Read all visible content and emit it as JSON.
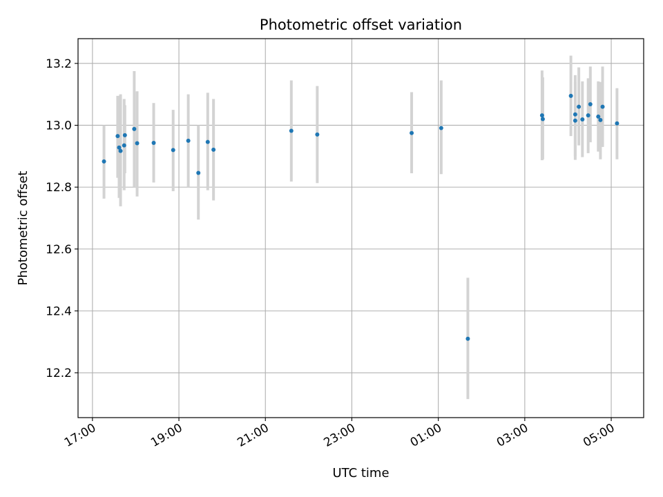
{
  "chart_data": {
    "type": "scatter",
    "title": "Photometric offset variation",
    "xlabel": "UTC time",
    "ylabel": "Photometric offset",
    "x_axis_type": "time",
    "xlim": [
      "16:40",
      "05:45"
    ],
    "ylim": [
      12.055,
      13.28
    ],
    "x_ticks": [
      "17:00",
      "19:00",
      "21:00",
      "23:00",
      "01:00",
      "03:00",
      "05:00"
    ],
    "y_ticks": [
      12.2,
      12.4,
      12.6,
      12.8,
      13.0,
      13.2
    ],
    "y_tick_labels": [
      "12.2",
      "12.4",
      "12.6",
      "12.8",
      "13.0",
      "13.2"
    ],
    "x_tick_rotation": "30 degrees",
    "grid": true,
    "marker_color": "#1f77b4",
    "errorbar_color": "#d3d3d3",
    "points": [
      {
        "t": "17:16",
        "y": 12.883,
        "ylo": 12.763,
        "yhi": 13.0
      },
      {
        "t": "17:35",
        "y": 12.965,
        "ylo": 12.83,
        "yhi": 13.095
      },
      {
        "t": "17:37",
        "y": 12.928,
        "ylo": 12.765,
        "yhi": 13.095
      },
      {
        "t": "17:39",
        "y": 12.917,
        "ylo": 12.738,
        "yhi": 13.1
      },
      {
        "t": "17:44",
        "y": 12.935,
        "ylo": 12.79,
        "yhi": 13.085
      },
      {
        "t": "17:45",
        "y": 12.968,
        "ylo": 12.845,
        "yhi": 13.065
      },
      {
        "t": "17:58",
        "y": 12.988,
        "ylo": 12.8,
        "yhi": 13.175
      },
      {
        "t": "18:02",
        "y": 12.942,
        "ylo": 12.77,
        "yhi": 13.11
      },
      {
        "t": "18:25",
        "y": 12.943,
        "ylo": 12.815,
        "yhi": 13.072
      },
      {
        "t": "18:52",
        "y": 12.92,
        "ylo": 12.787,
        "yhi": 13.05
      },
      {
        "t": "19:13",
        "y": 12.95,
        "ylo": 12.8,
        "yhi": 13.1
      },
      {
        "t": "19:27",
        "y": 12.846,
        "ylo": 12.695,
        "yhi": 13.0
      },
      {
        "t": "19:40",
        "y": 12.946,
        "ylo": 12.79,
        "yhi": 13.105
      },
      {
        "t": "19:48",
        "y": 12.921,
        "ylo": 12.757,
        "yhi": 13.085
      },
      {
        "t": "21:36",
        "y": 12.982,
        "ylo": 12.818,
        "yhi": 13.145
      },
      {
        "t": "22:12",
        "y": 12.97,
        "ylo": 12.813,
        "yhi": 13.127
      },
      {
        "t": "00:23",
        "y": 12.975,
        "ylo": 12.845,
        "yhi": 13.107
      },
      {
        "t": "01:04",
        "y": 12.991,
        "ylo": 12.842,
        "yhi": 13.145
      },
      {
        "t": "01:41",
        "y": 12.31,
        "ylo": 12.115,
        "yhi": 12.507
      },
      {
        "t": "03:24",
        "y": 13.032,
        "ylo": 12.887,
        "yhi": 13.177
      },
      {
        "t": "03:25",
        "y": 13.02,
        "ylo": 12.89,
        "yhi": 13.155
      },
      {
        "t": "04:04",
        "y": 13.095,
        "ylo": 12.965,
        "yhi": 13.225
      },
      {
        "t": "04:10",
        "y": 13.035,
        "ylo": 12.888,
        "yhi": 13.162
      },
      {
        "t": "04:10",
        "y": 13.015,
        "ylo": 12.9,
        "yhi": 13.14
      },
      {
        "t": "04:15",
        "y": 13.06,
        "ylo": 12.935,
        "yhi": 13.187
      },
      {
        "t": "04:20",
        "y": 13.019,
        "ylo": 12.897,
        "yhi": 13.142
      },
      {
        "t": "04:28",
        "y": 13.032,
        "ylo": 12.91,
        "yhi": 13.152
      },
      {
        "t": "04:31",
        "y": 13.068,
        "ylo": 12.945,
        "yhi": 13.19
      },
      {
        "t": "04:42",
        "y": 13.028,
        "ylo": 12.915,
        "yhi": 13.142
      },
      {
        "t": "04:45",
        "y": 13.017,
        "ylo": 12.89,
        "yhi": 13.14
      },
      {
        "t": "04:48",
        "y": 13.06,
        "ylo": 12.93,
        "yhi": 13.19
      },
      {
        "t": "05:08",
        "y": 13.006,
        "ylo": 12.89,
        "yhi": 13.12
      }
    ]
  }
}
